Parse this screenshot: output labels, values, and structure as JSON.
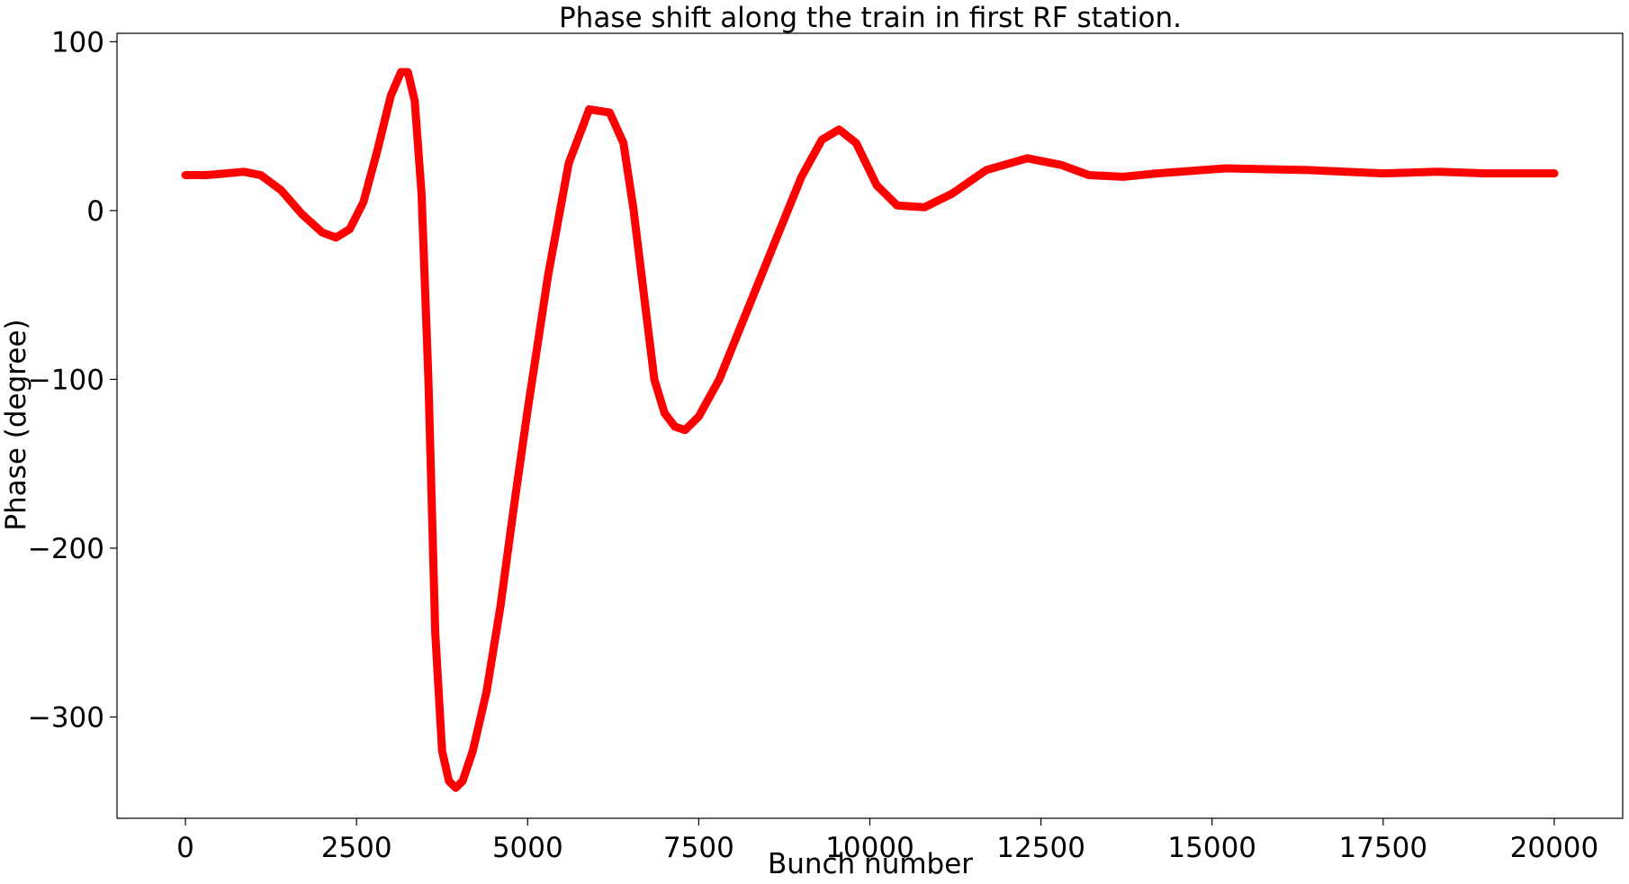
{
  "chart_data": {
    "type": "line",
    "title": "Phase shift along the train in first RF station.",
    "xlabel": "Bunch number",
    "ylabel": "Phase (degree)",
    "xlim": [
      -1000,
      21000
    ],
    "ylim": [
      -360,
      105
    ],
    "xticks": [
      0,
      2500,
      5000,
      7500,
      10000,
      12500,
      15000,
      17500,
      20000
    ],
    "xtick_labels": [
      "0",
      "2500",
      "5000",
      "7500",
      "10000",
      "12500",
      "15000",
      "17500",
      "20000"
    ],
    "yticks": [
      -300,
      -200,
      -100,
      0,
      100
    ],
    "ytick_labels": [
      "−300",
      "−200",
      "−100",
      "0",
      "100"
    ],
    "grid": false,
    "legend": "none",
    "series": [
      {
        "color": "#ff0000",
        "x": [
          0,
          300,
          600,
          850,
          1100,
          1400,
          1700,
          2000,
          2200,
          2400,
          2600,
          2800,
          3000,
          3150,
          3250,
          3350,
          3450,
          3550,
          3650,
          3750,
          3850,
          3950,
          4050,
          4200,
          4400,
          4600,
          4800,
          5000,
          5300,
          5600,
          5900,
          6200,
          6400,
          6550,
          6700,
          6850,
          7000,
          7150,
          7300,
          7500,
          7800,
          8100,
          8400,
          8700,
          9000,
          9300,
          9550,
          9800,
          10100,
          10400,
          10800,
          11200,
          11700,
          12300,
          12800,
          13200,
          13700,
          14200,
          15200,
          16400,
          17500,
          18300,
          19000,
          20000
        ],
        "y": [
          21,
          21,
          22,
          23,
          21,
          12,
          -2,
          -13,
          -16,
          -11,
          5,
          35,
          68,
          82,
          82,
          65,
          10,
          -100,
          -250,
          -320,
          -338,
          -342,
          -338,
          -320,
          -285,
          -235,
          -175,
          -118,
          -38,
          28,
          60,
          58,
          40,
          0,
          -50,
          -100,
          -120,
          -128,
          -130,
          -122,
          -100,
          -70,
          -40,
          -10,
          20,
          42,
          48,
          40,
          15,
          3,
          2,
          10,
          24,
          31,
          27,
          21,
          20,
          22,
          25,
          24,
          22,
          23,
          22,
          22
        ]
      }
    ]
  }
}
